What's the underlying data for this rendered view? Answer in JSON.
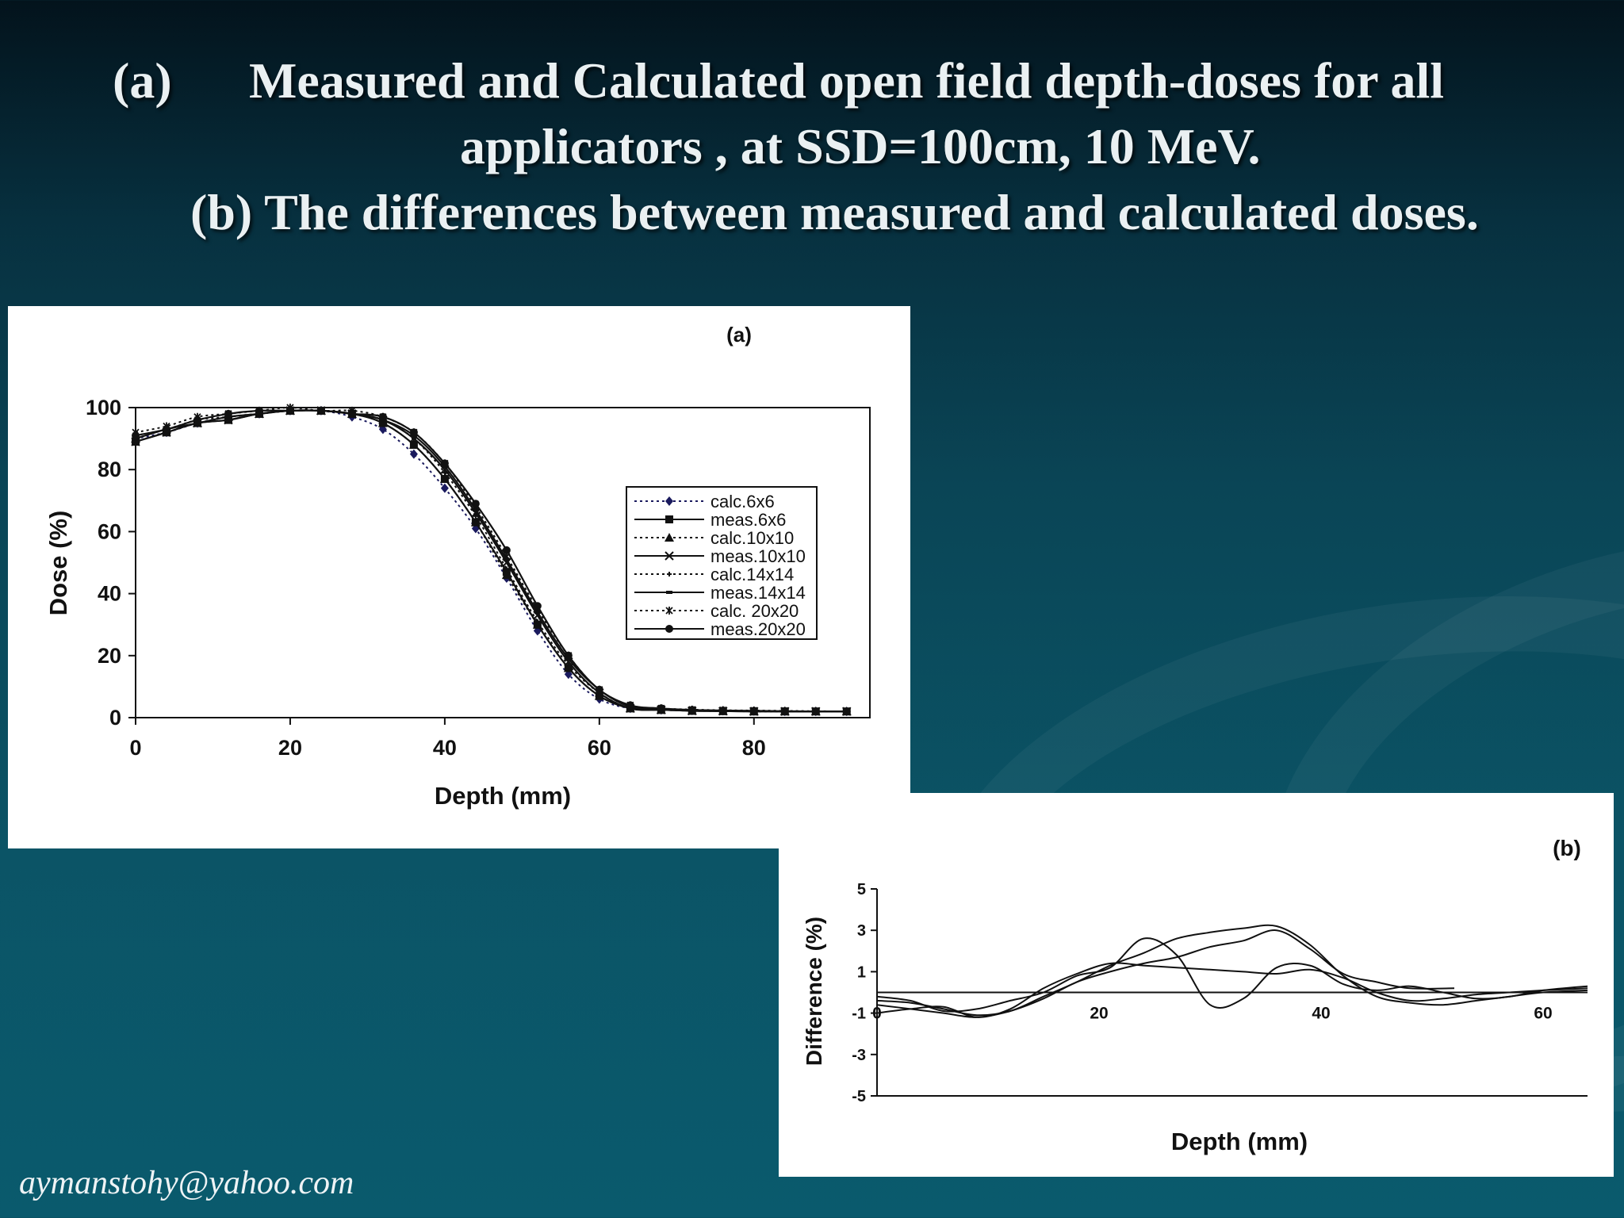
{
  "slide": {
    "title_line1_label": "(a)",
    "title_line1_text": "Measured and Calculated open field depth-doses for all",
    "title_line2_text": "applicators , at SSD=100cm, 10 MeV.",
    "title_line3_text": "(b) The differences between measured  and calculated doses.",
    "footer": "aymanstohy@yahoo.com",
    "background_colors": [
      "#03131c",
      "#0a5a6d"
    ]
  },
  "chart_data": [
    {
      "type": "line",
      "panel_label": "(a)",
      "xlabel": "Depth (mm)",
      "ylabel": "Dose (%)",
      "xlim": [
        0,
        95
      ],
      "ylim": [
        0,
        100
      ],
      "xticks": [
        0,
        20,
        40,
        60,
        80
      ],
      "yticks": [
        0,
        20,
        40,
        60,
        80,
        100
      ],
      "grid": false,
      "legend_position": "right-center",
      "series": [
        {
          "name": "calc.6x6",
          "style": "dotted",
          "marker": "diamond",
          "color": "#1a1a5e",
          "x": [
            0,
            4,
            8,
            12,
            16,
            20,
            24,
            28,
            32,
            36,
            40,
            44,
            48,
            52,
            56,
            60,
            64,
            68,
            72,
            76,
            80,
            84,
            88,
            92
          ],
          "y": [
            90,
            92,
            95,
            97,
            98,
            99,
            99,
            97,
            93,
            85,
            74,
            61,
            45,
            28,
            14,
            6,
            3,
            2.5,
            2.3,
            2.2,
            2.1,
            2,
            2,
            2
          ]
        },
        {
          "name": "meas.6x6",
          "style": "solid",
          "marker": "square",
          "color": "#111111",
          "x": [
            0,
            4,
            8,
            12,
            16,
            20,
            24,
            28,
            32,
            36,
            40,
            44,
            48,
            52,
            56,
            60,
            64,
            68,
            72,
            76,
            80,
            84,
            88,
            92
          ],
          "y": [
            89,
            92,
            95,
            96,
            98,
            99,
            99,
            98,
            95,
            88,
            77,
            63,
            47,
            30,
            16,
            7,
            3,
            2.5,
            2.2,
            2.1,
            2,
            2,
            2,
            2
          ]
        },
        {
          "name": "calc.10x10",
          "style": "dotted",
          "marker": "triangle",
          "color": "#111111",
          "x": [
            0,
            4,
            8,
            12,
            16,
            20,
            24,
            28,
            32,
            36,
            40,
            44,
            48,
            52,
            56,
            60,
            64,
            68,
            72,
            76,
            80,
            84,
            88,
            92
          ],
          "y": [
            90,
            93,
            95,
            97,
            98,
            99,
            99,
            98,
            95,
            88,
            77,
            63,
            46,
            30,
            16,
            7,
            3,
            2.5,
            2.2,
            2.1,
            2,
            2,
            2,
            2
          ]
        },
        {
          "name": "meas.10x10",
          "style": "solid",
          "marker": "x",
          "color": "#111111",
          "x": [
            0,
            4,
            8,
            12,
            16,
            20,
            24,
            28,
            32,
            36,
            40,
            44,
            48,
            52,
            56,
            60,
            64,
            68,
            72,
            76,
            80,
            84,
            88,
            92
          ],
          "y": [
            89,
            92,
            95,
            96,
            98,
            99,
            99,
            98,
            96,
            90,
            80,
            66,
            50,
            33,
            18,
            8,
            3,
            2.5,
            2.2,
            2.1,
            2,
            2,
            2,
            2
          ]
        },
        {
          "name": "calc.14x14",
          "style": "dotted",
          "marker": "plus",
          "color": "#111111",
          "x": [
            0,
            4,
            8,
            12,
            16,
            20,
            24,
            28,
            32,
            36,
            40,
            44,
            48,
            52,
            56,
            60,
            64,
            68,
            72,
            76,
            80,
            84,
            88,
            92
          ],
          "y": [
            91,
            93,
            96,
            97,
            98,
            99,
            99,
            98,
            96,
            90,
            79,
            65,
            48,
            31,
            17,
            8,
            3,
            2.5,
            2.3,
            2.2,
            2.1,
            2,
            2,
            2
          ]
        },
        {
          "name": "meas.14x14",
          "style": "solid",
          "marker": "dash",
          "color": "#111111",
          "x": [
            0,
            4,
            8,
            12,
            16,
            20,
            24,
            28,
            32,
            36,
            40,
            44,
            48,
            52,
            56,
            60,
            64,
            68,
            72,
            76,
            80,
            84,
            88,
            92
          ],
          "y": [
            90,
            93,
            95,
            97,
            98,
            99,
            99,
            98,
            96,
            91,
            81,
            67,
            51,
            34,
            19,
            9,
            3.5,
            2.8,
            2.4,
            2.2,
            2.1,
            2,
            2,
            2
          ]
        },
        {
          "name": "calc. 20x20",
          "style": "dotted",
          "marker": "asterisk",
          "color": "#111111",
          "x": [
            0,
            4,
            8,
            12,
            16,
            20,
            24,
            28,
            32,
            36,
            40,
            44,
            48,
            52,
            56,
            60,
            64,
            68,
            72,
            76,
            80,
            84,
            88,
            92
          ],
          "y": [
            92,
            94,
            97,
            98,
            99,
            100,
            99,
            99,
            97,
            92,
            82,
            68,
            52,
            35,
            20,
            9,
            4,
            3,
            2.6,
            2.4,
            2.3,
            2.2,
            2.1,
            2
          ]
        },
        {
          "name": "meas.20x20",
          "style": "solid",
          "marker": "circle",
          "color": "#111111",
          "x": [
            0,
            4,
            8,
            12,
            16,
            20,
            24,
            28,
            32,
            36,
            40,
            44,
            48,
            52,
            56,
            60,
            64,
            68,
            72,
            76,
            80,
            84,
            88,
            92
          ],
          "y": [
            91,
            93,
            96,
            98,
            99,
            99,
            99,
            98,
            97,
            92,
            82,
            69,
            54,
            36,
            20,
            9,
            4,
            3,
            2.5,
            2.3,
            2.2,
            2.1,
            2,
            2
          ]
        }
      ]
    },
    {
      "type": "line",
      "panel_label": "(b)",
      "xlabel": "Depth (mm)",
      "ylabel": "Difference (%)",
      "xlim": [
        0,
        64
      ],
      "ylim": [
        -5,
        5
      ],
      "xticks": [
        0,
        20,
        40,
        60
      ],
      "yticks": [
        5,
        3,
        1,
        -1,
        -3,
        -5
      ],
      "reference_line": 0,
      "grid": false,
      "series": [
        {
          "x": [
            0,
            3,
            6,
            9,
            12,
            15,
            18,
            21,
            24,
            27,
            30,
            33,
            36,
            39,
            42,
            45,
            48,
            51,
            54,
            57,
            60,
            64
          ],
          "y": [
            -0.4,
            -0.5,
            -0.8,
            -1.1,
            -0.9,
            -0.2,
            0.5,
            1.3,
            1.9,
            2.6,
            2.9,
            3.1,
            3.2,
            2.3,
            0.8,
            -0.2,
            -0.5,
            -0.6,
            -0.4,
            -0.2,
            0,
            0.1
          ]
        },
        {
          "x": [
            0,
            3,
            6,
            9,
            12,
            15,
            18,
            21,
            24,
            27,
            30,
            33,
            36,
            39,
            42,
            45,
            48,
            51,
            54,
            57,
            60,
            64
          ],
          "y": [
            -1,
            -0.8,
            -0.7,
            -1.2,
            -0.8,
            0.2,
            0.9,
            1.4,
            1.3,
            1.2,
            1.1,
            1.0,
            0.9,
            1.1,
            0.7,
            0,
            -0.4,
            -0.3,
            -0.1,
            0,
            0.1,
            0.2
          ]
        },
        {
          "x": [
            0,
            3,
            6,
            9,
            12,
            15,
            18,
            21,
            24,
            27,
            30,
            33,
            36,
            39,
            42,
            45,
            48,
            51,
            54,
            57,
            60,
            64
          ],
          "y": [
            -0.2,
            -0.4,
            -0.9,
            -0.8,
            -0.4,
            0,
            0.8,
            1.2,
            2.6,
            1.8,
            -0.6,
            -0.3,
            1.2,
            1.3,
            0.4,
            0.1,
            0.3,
            0,
            -0.3,
            -0.2,
            0.1,
            0.3
          ]
        },
        {
          "x": [
            0,
            3,
            6,
            9,
            12,
            15,
            18,
            21,
            24,
            27,
            30,
            33,
            36,
            39,
            42,
            45,
            48,
            52
          ],
          "y": [
            -0.6,
            -0.8,
            -1.0,
            -1.2,
            -0.9,
            -0.3,
            0.5,
            1.0,
            1.4,
            1.7,
            2.2,
            2.5,
            3.0,
            2.1,
            0.9,
            0.5,
            0.2,
            0.2
          ]
        }
      ]
    }
  ]
}
